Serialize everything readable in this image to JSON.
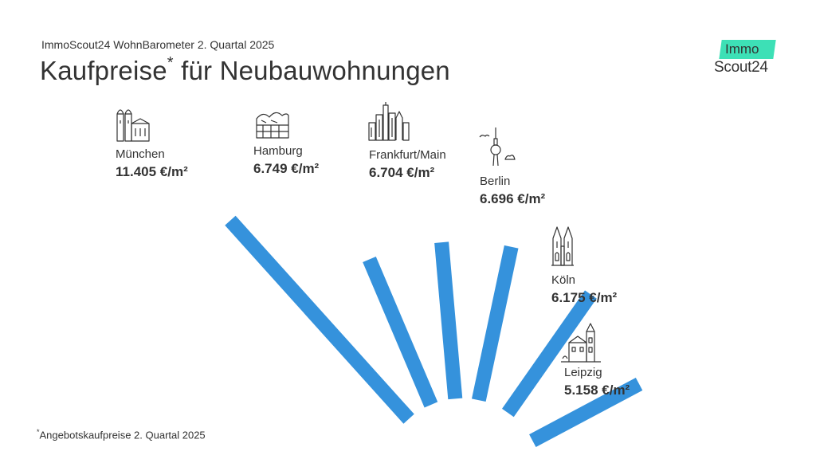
{
  "header": {
    "subtitle": "ImmoScout24 WohnBarometer 2. Quartal 2025",
    "title": "Kaufpreise",
    "title_mark": "*",
    "title_rest": " für Neubauwohnungen"
  },
  "logo": {
    "top": "Immo",
    "bottom": "Scout24",
    "accent": "#3de0b6"
  },
  "footnote": {
    "mark": "*",
    "text": "Angebotskaufpreise 2. Quartal 2025"
  },
  "colors": {
    "bar": "#3592dc",
    "text": "#333333"
  },
  "chart_data": {
    "type": "bar",
    "title": "Kaufpreise* für Neubauwohnungen",
    "subtitle": "ImmoScout24 WohnBarometer 2. Quartal 2025",
    "unit": "€/m²",
    "categories": [
      "München",
      "Hamburg",
      "Frankfurt/Main",
      "Berlin",
      "Köln",
      "Leipzig"
    ],
    "values": [
      11405,
      6749,
      6704,
      6696,
      6175,
      5158
    ],
    "value_labels": [
      "11.405 €/m²",
      "6.749 €/m²",
      "6.704 €/m²",
      "6.696 €/m²",
      "6.175 €/m²",
      "5.158 €/m²"
    ],
    "icons": [
      "munich-church-icon",
      "hamburg-elbphilharmonie-icon",
      "frankfurt-skyline-icon",
      "berlin-tv-tower-icon",
      "cologne-cathedral-icon",
      "leipzig-town-hall-icon"
    ]
  }
}
